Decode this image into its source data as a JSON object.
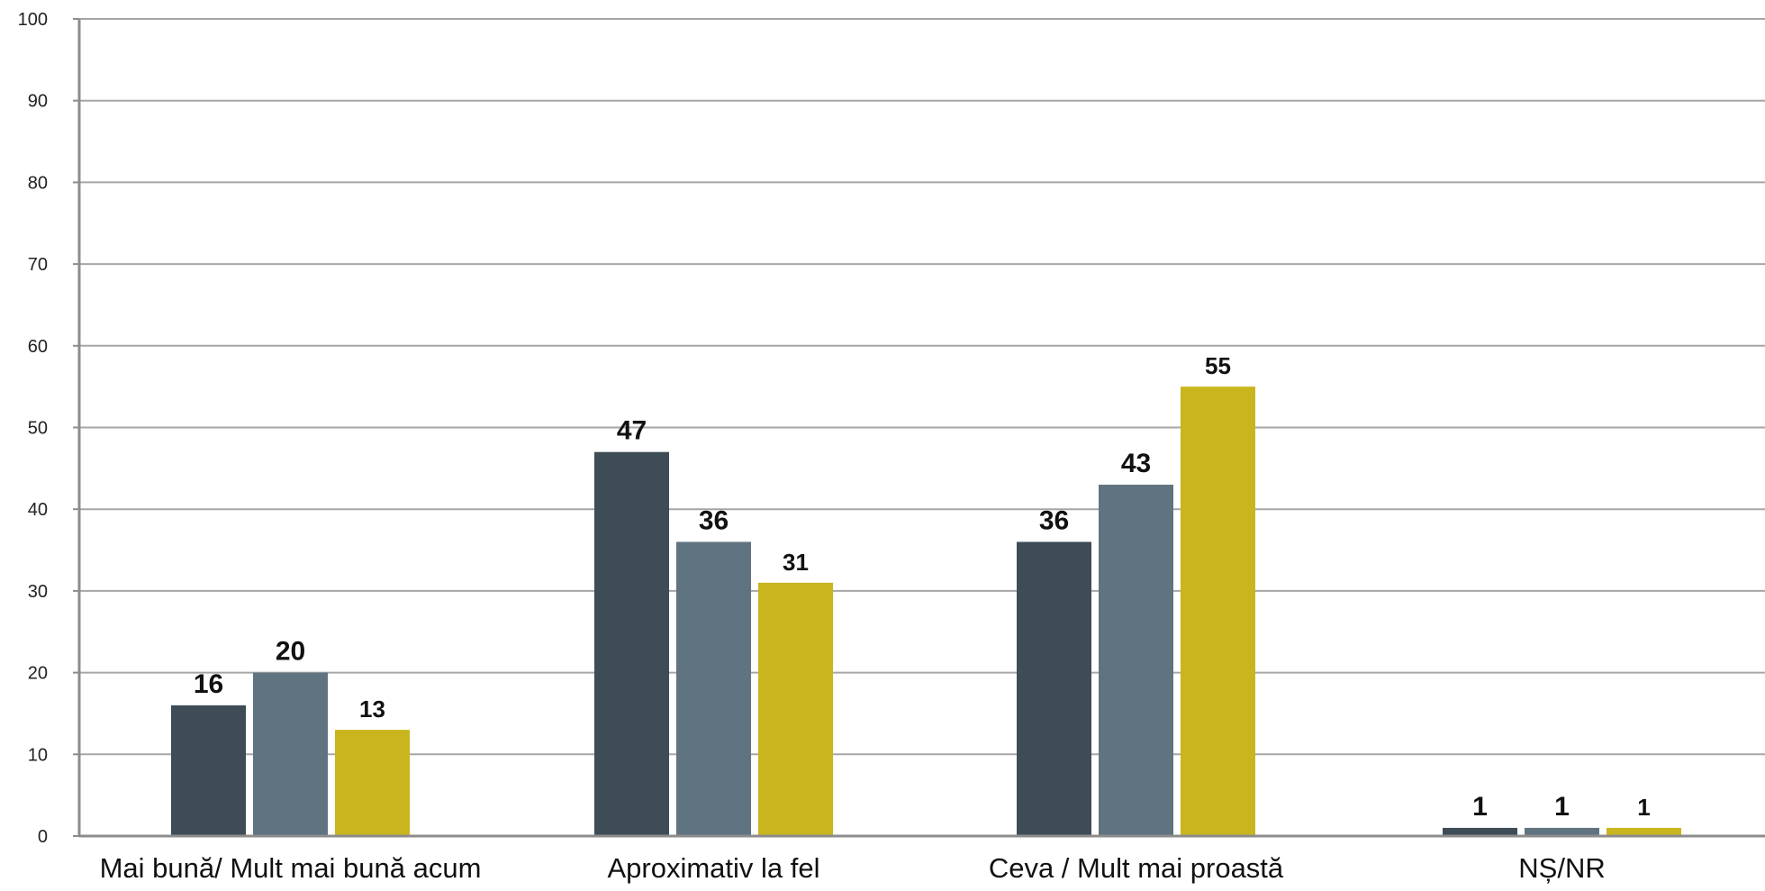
{
  "chart_data": {
    "type": "bar",
    "title": "",
    "xlabel": "",
    "ylabel": "",
    "ylim": [
      0,
      100
    ],
    "yticks": [
      0,
      10,
      20,
      30,
      40,
      50,
      60,
      70,
      80,
      90,
      100
    ],
    "grid": true,
    "legend": "none",
    "categories": [
      "Mai bună/ Mult mai bună  acum",
      "Aproximativ la fel",
      "Ceva / Mult mai proastă",
      "NȘ/NR"
    ],
    "series": [
      {
        "color": "#3e4c56",
        "values": [
          16,
          47,
          36,
          1
        ]
      },
      {
        "color": "#607381",
        "values": [
          20,
          36,
          43,
          1
        ]
      },
      {
        "color": "#c9b51e",
        "values": [
          13,
          31,
          55,
          1
        ]
      }
    ],
    "colors": {
      "grid": "#a6a6a6",
      "axis": "#8c8c8c"
    }
  }
}
